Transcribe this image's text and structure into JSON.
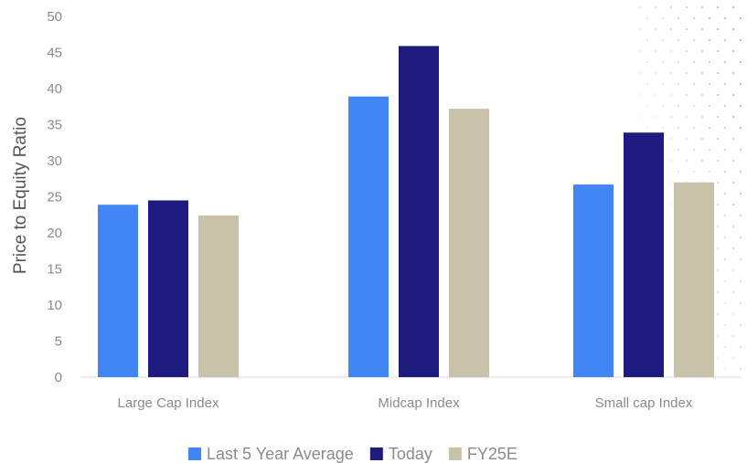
{
  "chart_data": {
    "type": "bar",
    "title": "",
    "xlabel": "",
    "ylabel": "Price to Equity Ratio",
    "ylim": [
      0,
      50
    ],
    "yticks": [
      0,
      5,
      10,
      15,
      20,
      25,
      30,
      35,
      40,
      45,
      50
    ],
    "grid": false,
    "legend_position": "bottom",
    "categories": [
      "Large Cap Index",
      "Midcap Index",
      "Small cap Index"
    ],
    "series": [
      {
        "name": "Last 5 Year Average",
        "color": "#4285f4",
        "values": [
          23.9,
          38.9,
          26.7
        ]
      },
      {
        "name": "Today",
        "color": "#1e1a7e",
        "values": [
          24.5,
          45.9,
          33.9
        ]
      },
      {
        "name": "FY25E",
        "color": "#c8c2ab",
        "values": [
          22.4,
          37.2,
          27.0
        ]
      }
    ]
  }
}
